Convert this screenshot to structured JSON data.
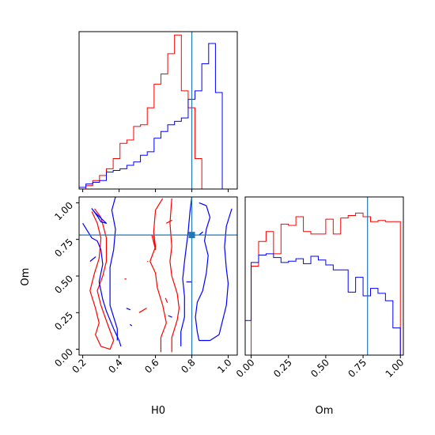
{
  "chart_data": {
    "type": "corner",
    "parameters": [
      "H0",
      "Om"
    ],
    "truth": {
      "H0": 0.8,
      "Om": 0.78
    },
    "colors": {
      "red": "#ff0000",
      "blue": "#0000ff",
      "truth": "#1f77b4"
    },
    "h0_hist": {
      "type": "step-histogram",
      "xlim": [
        0.18,
        1.05
      ],
      "x_ticks": [
        "0.2",
        "0.4",
        "0.6",
        "0.8",
        "1.0"
      ],
      "x_tick_values": [
        0.2,
        0.4,
        0.6,
        0.8,
        1.0
      ],
      "bin_edges": [
        0.18,
        0.2175,
        0.255,
        0.2925,
        0.33,
        0.3675,
        0.405,
        0.4425,
        0.48,
        0.5175,
        0.555,
        0.5925,
        0.63,
        0.6675,
        0.705,
        0.7425,
        0.78,
        0.8175,
        0.855,
        0.8925,
        0.93,
        0.9675,
        1.005
      ],
      "series": [
        {
          "color": "red",
          "values": [
            0,
            0.02,
            0.05,
            0.08,
            0.12,
            0.18,
            0.27,
            0.29,
            0.37,
            0.38,
            0.48,
            0.62,
            0.68,
            0.8,
            0.91,
            0.58,
            0.48,
            0.18,
            0,
            0,
            0,
            0
          ]
        },
        {
          "color": "blue",
          "values": [
            0.01,
            0.03,
            0.04,
            0.05,
            0.1,
            0.11,
            0.12,
            0.14,
            0.16,
            0.2,
            0.22,
            0.3,
            0.34,
            0.38,
            0.4,
            0.42,
            0.53,
            0.58,
            0.74,
            0.86,
            0.57,
            0
          ]
        }
      ]
    },
    "om_hist": {
      "type": "step-histogram",
      "xlim": [
        -0.04,
        1.02
      ],
      "x_ticks": [
        "0.00",
        "0.25",
        "0.50",
        "0.75",
        "1.00"
      ],
      "x_tick_values": [
        0,
        0.25,
        0.5,
        0.75,
        1.0
      ],
      "xlabel": "Om",
      "bin_edges": [
        -0.04,
        0.0,
        0.05,
        0.1,
        0.15,
        0.2,
        0.25,
        0.3,
        0.35,
        0.4,
        0.45,
        0.5,
        0.55,
        0.6,
        0.65,
        0.7,
        0.75,
        0.8,
        0.85,
        0.9,
        0.95,
        1.0
      ],
      "series": [
        {
          "color": "red",
          "values": [
            0,
            0.72,
            0.92,
            1.0,
            0.82,
            1.06,
            1.05,
            1.12,
            1.0,
            0.98,
            0.98,
            1.1,
            0.98,
            1.11,
            1.13,
            1.15,
            1.12,
            1.08,
            1.09,
            1.08,
            1.08
          ]
        },
        {
          "color": "blue",
          "values": [
            0.28,
            0.75,
            0.81,
            0.82,
            0.79,
            0.75,
            0.76,
            0.78,
            0.74,
            0.8,
            0.77,
            0.73,
            0.69,
            0.69,
            0.51,
            0.63,
            0.48,
            0.54,
            0.5,
            0.44,
            0.22
          ]
        }
      ]
    },
    "contour": {
      "type": "contour",
      "xlim": [
        0.18,
        1.05
      ],
      "ylim": [
        -0.04,
        1.04
      ],
      "xlabel": "H0",
      "ylabel": "Om",
      "x_ticks": [
        "0.2",
        "0.4",
        "0.6",
        "0.8",
        "1.0"
      ],
      "x_tick_values": [
        0.2,
        0.4,
        0.6,
        0.8,
        1.0
      ],
      "y_ticks": [
        "0.00",
        "0.25",
        "0.50",
        "0.75",
        "1.00"
      ],
      "y_tick_values": [
        0,
        0.25,
        0.5,
        0.75,
        1.0
      ],
      "series": [
        {
          "color": "red",
          "paths": [
            [
              [
                0.265,
                0.96
              ],
              [
                0.3,
                0.9
              ],
              [
                0.33,
                0.76
              ],
              [
                0.33,
                0.6
              ],
              [
                0.31,
                0.5
              ],
              [
                0.28,
                0.4
              ],
              [
                0.3,
                0.3
              ],
              [
                0.34,
                0.16
              ],
              [
                0.37,
                0.06
              ],
              [
                0.35,
                0.0
              ],
              [
                0.3,
                0.02
              ],
              [
                0.27,
                0.1
              ],
              [
                0.29,
                0.18
              ],
              [
                0.27,
                0.28
              ],
              [
                0.24,
                0.4
              ],
              [
                0.265,
                0.52
              ],
              [
                0.29,
                0.62
              ],
              [
                0.3,
                0.76
              ],
              [
                0.28,
                0.86
              ],
              [
                0.25,
                0.94
              ]
            ],
            [
              [
                0.63,
                -0.02
              ],
              [
                0.63,
                0.08
              ],
              [
                0.66,
                0.18
              ],
              [
                0.64,
                0.3
              ],
              [
                0.61,
                0.42
              ],
              [
                0.6,
                0.52
              ],
              [
                0.57,
                0.6
              ],
              [
                0.6,
                0.7
              ],
              [
                0.59,
                0.8
              ],
              [
                0.6,
                0.95
              ],
              [
                0.64,
                1.03
              ]
            ],
            [
              [
                0.69,
                -0.02
              ],
              [
                0.69,
                0.08
              ],
              [
                0.72,
                0.2
              ],
              [
                0.73,
                0.28
              ],
              [
                0.72,
                0.38
              ],
              [
                0.69,
                0.5
              ],
              [
                0.68,
                0.6
              ],
              [
                0.69,
                0.7
              ],
              [
                0.68,
                0.86
              ],
              [
                0.69,
                1.03
              ]
            ],
            [
              [
                0.58,
                0.78
              ],
              [
                0.6,
                0.68
              ],
              [
                0.59,
                0.78
              ]
            ],
            [
              [
                0.66,
                0.86
              ],
              [
                0.69,
                0.88
              ],
              [
                0.66,
                0.86
              ]
            ],
            [
              [
                0.655,
                0.35
              ],
              [
                0.665,
                0.32
              ],
              [
                0.655,
                0.35
              ]
            ],
            [
              [
                0.43,
                0.48
              ],
              [
                0.44,
                0.48
              ]
            ],
            [
              [
                0.555,
                0.6
              ],
              [
                0.56,
                0.6
              ]
            ],
            [
              [
                0.51,
                0.25
              ],
              [
                0.55,
                0.28
              ],
              [
                0.51,
                0.25
              ]
            ]
          ]
        },
        {
          "color": "blue",
          "paths": [
            [
              [
                0.28,
                0.91
              ],
              [
                0.3,
                0.87
              ],
              [
                0.33,
                0.86
              ],
              [
                0.27,
                0.93
              ],
              [
                0.25,
                0.96
              ],
              [
                0.28,
                0.91
              ]
            ],
            [
              [
                0.2,
                0.86
              ],
              [
                0.25,
                0.76
              ],
              [
                0.28,
                0.74
              ],
              [
                0.3,
                0.68
              ],
              [
                0.31,
                0.58
              ],
              [
                0.29,
                0.46
              ],
              [
                0.31,
                0.34
              ],
              [
                0.33,
                0.26
              ],
              [
                0.37,
                0.14
              ],
              [
                0.4,
                0.06
              ],
              [
                0.41,
                0.02
              ]
            ],
            [
              [
                0.38,
                1.04
              ],
              [
                0.36,
                0.95
              ],
              [
                0.38,
                0.82
              ],
              [
                0.37,
                0.68
              ],
              [
                0.35,
                0.56
              ],
              [
                0.35,
                0.42
              ],
              [
                0.35,
                0.3
              ],
              [
                0.37,
                0.22
              ],
              [
                0.39,
                0.14
              ],
              [
                0.39,
                0.06
              ]
            ],
            [
              [
                0.24,
                0.6
              ],
              [
                0.27,
                0.63
              ],
              [
                0.24,
                0.6
              ]
            ],
            [
              [
                0.74,
                0.02
              ],
              [
                0.74,
                0.12
              ],
              [
                0.76,
                0.22
              ],
              [
                0.76,
                0.36
              ],
              [
                0.75,
                0.48
              ],
              [
                0.76,
                0.6
              ],
              [
                0.77,
                0.7
              ],
              [
                0.78,
                0.8
              ],
              [
                0.79,
                0.94
              ],
              [
                0.8,
                1.04
              ]
            ],
            [
              [
                0.84,
                1.0
              ],
              [
                0.88,
                0.98
              ],
              [
                0.9,
                0.9
              ],
              [
                0.88,
                0.82
              ],
              [
                0.87,
                0.74
              ],
              [
                0.89,
                0.64
              ],
              [
                0.88,
                0.52
              ],
              [
                0.86,
                0.4
              ],
              [
                0.83,
                0.32
              ],
              [
                0.82,
                0.22
              ],
              [
                0.83,
                0.12
              ],
              [
                0.84,
                0.06
              ],
              [
                0.9,
                0.06
              ],
              [
                0.95,
                0.1
              ],
              [
                0.97,
                0.2
              ],
              [
                0.99,
                0.3
              ],
              [
                1.0,
                0.45
              ],
              [
                0.99,
                0.55
              ],
              [
                0.98,
                0.7
              ],
              [
                0.99,
                0.84
              ],
              [
                1.02,
                0.96
              ]
            ],
            [
              [
                0.44,
                0.28
              ],
              [
                0.46,
                0.27
              ],
              [
                0.44,
                0.28
              ]
            ],
            [
              [
                0.67,
                0.23
              ],
              [
                0.69,
                0.22
              ],
              [
                0.67,
                0.23
              ]
            ],
            [
              [
                0.46,
                0.17
              ],
              [
                0.47,
                0.16
              ]
            ],
            [
              [
                0.77,
                0.46
              ],
              [
                0.8,
                0.46
              ]
            ],
            [
              [
                0.84,
                0.78
              ],
              [
                0.86,
                0.8
              ],
              [
                0.84,
                0.78
              ]
            ]
          ]
        }
      ]
    }
  }
}
